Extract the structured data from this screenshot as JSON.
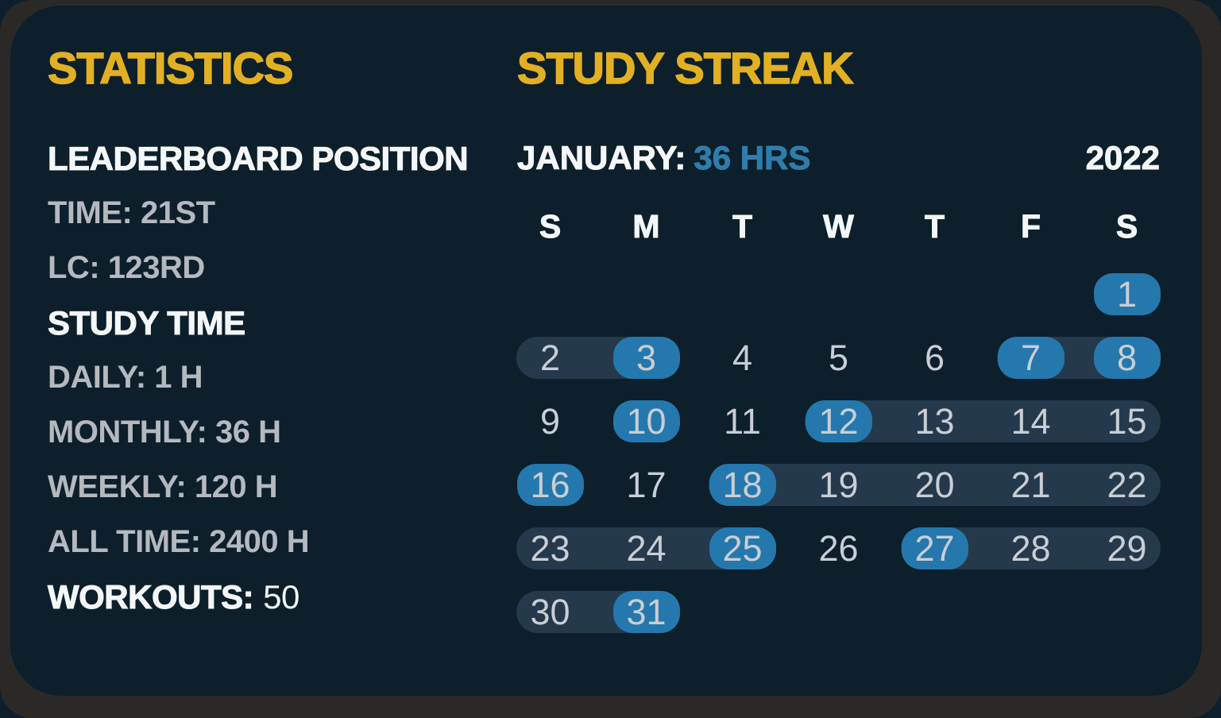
{
  "colors": {
    "page_background": "#0c1f2b",
    "card_frame_gray": "#2b2927",
    "panel_navy": "#0c1f2b",
    "accent_yellow": "#e2b023",
    "accent_blue_pill": "#2478ae",
    "hours_text_blue": "#2e7dad",
    "streak_track_navy": "#24394b",
    "heading_white": "#f4f6f7",
    "label_gray": "#b5b9bd",
    "day_number_gray": "#c9ced3"
  },
  "statistics": {
    "title": "STATISTICS",
    "sections": [
      {
        "heading": "LEADERBOARD POSITION",
        "lines": [
          "TIME: 21ST",
          "LC: 123RD"
        ]
      },
      {
        "heading": "STUDY TIME",
        "lines": [
          "DAILY: 1 H",
          "MONTHLY: 36 H",
          "WEEKLY: 120 H",
          "ALL TIME: 2400 H"
        ]
      }
    ],
    "workouts": {
      "label": "WORKOUTS:",
      "value": "50"
    }
  },
  "streak": {
    "title": "STUDY STREAK",
    "month_label": "JANUARY:",
    "month_hours": "36 HRS",
    "year": "2022",
    "weekdays": [
      "S",
      "M",
      "T",
      "W",
      "T",
      "F",
      "S"
    ],
    "first_day_column": 6,
    "days_in_month": 31,
    "study_days": [
      1,
      3,
      7,
      8,
      10,
      12,
      16,
      18,
      25,
      27,
      31
    ],
    "streak_spans": [
      [
        2,
        3
      ],
      [
        7,
        8
      ],
      [
        12,
        15
      ],
      [
        18,
        22
      ],
      [
        23,
        25
      ],
      [
        27,
        29
      ],
      [
        30,
        31
      ]
    ]
  }
}
